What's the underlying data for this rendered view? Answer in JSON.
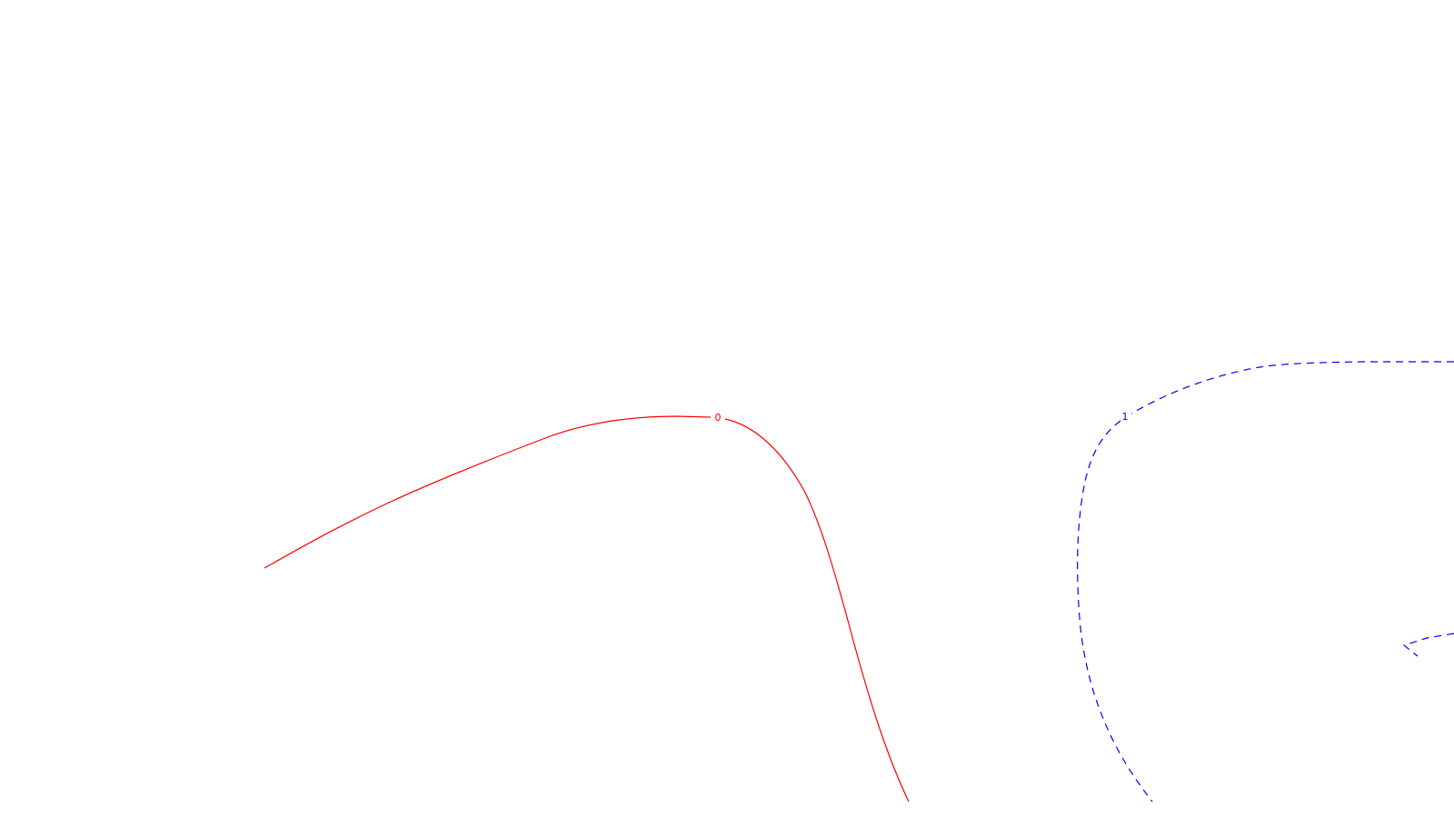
{
  "contours": [
    {
      "id": "contour-0",
      "level_label": "0",
      "color": "#ff0000",
      "line_style": "solid"
    },
    {
      "id": "contour-1",
      "level_label": "1",
      "color": "#0000ff",
      "line_style": "dashed"
    }
  ]
}
